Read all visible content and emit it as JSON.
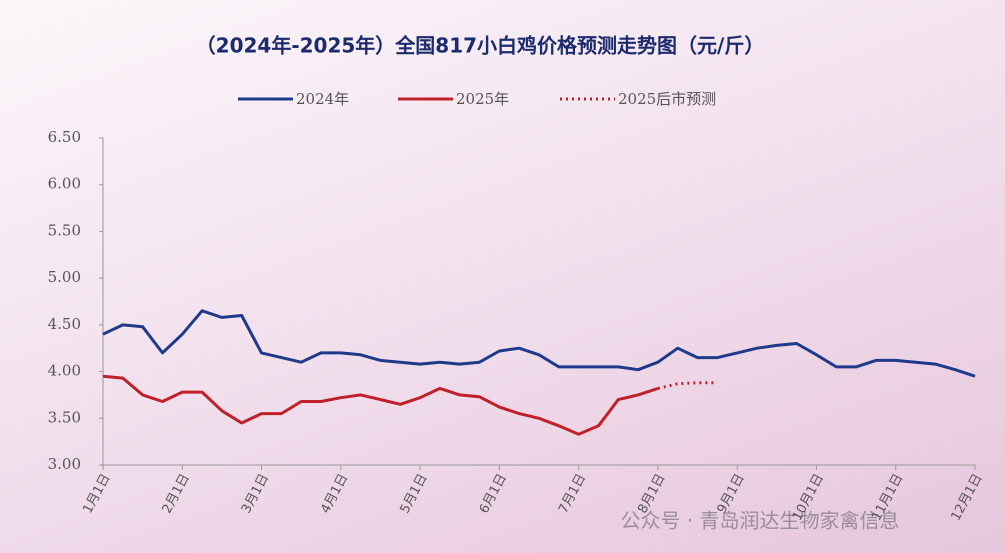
{
  "chart_data": {
    "type": "line",
    "title": "（2024年-2025年）全国817小白鸡价格预测走势图（元/斤）",
    "watermark": "公众号 · 青岛润达生物家禽信息",
    "categories": [
      "1月1日",
      null,
      null,
      null,
      "2月1日",
      null,
      null,
      null,
      "3月1日",
      null,
      null,
      null,
      "4月1日",
      null,
      null,
      null,
      "5月1日",
      null,
      null,
      null,
      "6月1日",
      null,
      null,
      null,
      "7月1日",
      null,
      null,
      null,
      "8月1日",
      null,
      null,
      null,
      "9月1日",
      null,
      null,
      null,
      "10月1日",
      null,
      null,
      null,
      "11月1日",
      null,
      null,
      null,
      "12月1日"
    ],
    "series": [
      {
        "name": "2024年",
        "color": "#1f3a8c",
        "line_style": "solid",
        "values": [
          4.4,
          4.5,
          4.48,
          4.2,
          4.4,
          4.65,
          4.58,
          4.6,
          4.2,
          4.15,
          4.1,
          4.2,
          4.2,
          4.18,
          4.12,
          4.1,
          4.08,
          4.1,
          4.08,
          4.1,
          4.22,
          4.25,
          4.18,
          4.05,
          4.05,
          4.05,
          4.05,
          4.02,
          4.1,
          4.25,
          4.15,
          4.15,
          4.2,
          4.25,
          4.28,
          4.3,
          4.18,
          4.05,
          4.05,
          4.12,
          4.12,
          4.1,
          4.08,
          4.02,
          3.95
        ]
      },
      {
        "name": "2025年",
        "color": "#c0202a",
        "line_style": "solid",
        "values": [
          3.95,
          3.93,
          3.75,
          3.68,
          3.78,
          3.78,
          3.58,
          3.45,
          3.55,
          3.55,
          3.68,
          3.68,
          3.72,
          3.75,
          3.7,
          3.65,
          3.72,
          3.82,
          3.75,
          3.73,
          3.62,
          3.55,
          3.5,
          3.42,
          3.33,
          3.42,
          3.7,
          3.75,
          3.82,
          null,
          null,
          null,
          null,
          null,
          null,
          null,
          null,
          null,
          null,
          null,
          null,
          null,
          null,
          null,
          null
        ]
      },
      {
        "name": "2025后市预测",
        "color": "#c0202a",
        "line_style": "dotted",
        "values": [
          null,
          null,
          null,
          null,
          null,
          null,
          null,
          null,
          null,
          null,
          null,
          null,
          null,
          null,
          null,
          null,
          null,
          null,
          null,
          null,
          null,
          null,
          null,
          null,
          null,
          null,
          null,
          null,
          3.82,
          3.87,
          3.88,
          3.88,
          null,
          null,
          null,
          null,
          null,
          null,
          null,
          null,
          null,
          null,
          null,
          null,
          null
        ]
      }
    ],
    "ylim": [
      3,
      6.5
    ],
    "yticks": [
      {
        "value": 3,
        "label": "3.00"
      },
      {
        "value": 3.5,
        "label": "3.50"
      },
      {
        "value": 4,
        "label": "4.00"
      },
      {
        "value": 4.5,
        "label": "4.50"
      },
      {
        "value": 5,
        "label": "5.00"
      },
      {
        "value": 5.5,
        "label": "5.50"
      },
      {
        "value": 6,
        "label": "6.00"
      },
      {
        "value": 6.5,
        "label": "6.50"
      }
    ],
    "grid": false
  }
}
